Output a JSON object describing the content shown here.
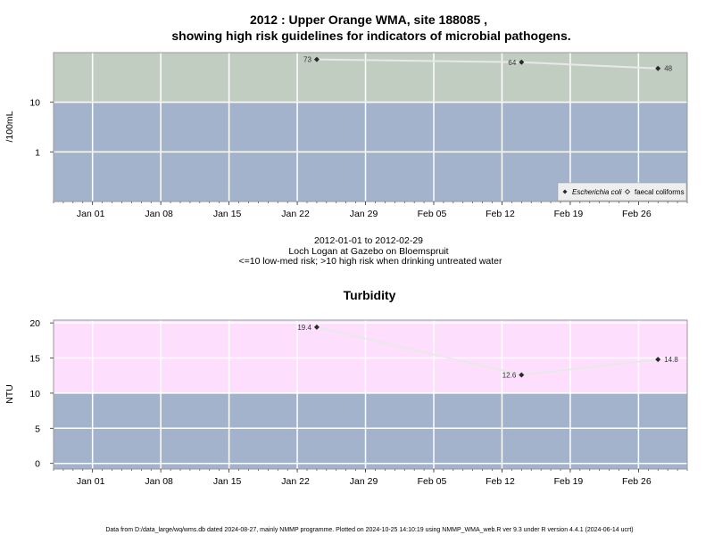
{
  "page": {
    "title_line1": "2012 : Upper Orange WMA, site 188085 ,",
    "title_line2": "showing high risk guidelines for indicators of microbial pathogens.",
    "date_range": "2012-01-01 to 2012-02-29",
    "site_name": "Loch Logan at Gazebo on Bloemspruit",
    "risk_note": "<=10 low-med risk; >10 high risk when drinking untreated water",
    "footer": "Data from D:/data_large/wq/wms.db dated 2024-08-27, mainly NMMP programme. Plotted on 2024-10-25 14:10:19 using NMMP_WMA_web.R ver 9.3 under R version 4.4.1 (2024-06-14 ucrt)"
  },
  "chart_data": [
    {
      "type": "line",
      "title": "2012 : Upper Orange WMA, site 188085 , showing high risk guidelines for indicators of microbial pathogens.",
      "ylabel": "/100mL",
      "xlabel": "",
      "yscale": "log",
      "ylim": [
        0.1,
        100
      ],
      "xlim": [
        "2011-12-28",
        "2012-03-02"
      ],
      "x_ticks": [
        "Jan 01",
        "Jan 08",
        "Jan 15",
        "Jan 22",
        "Jan 29",
        "Feb 05",
        "Feb 12",
        "Feb 19",
        "Feb 26"
      ],
      "x_tick_dates": [
        "2012-01-01",
        "2012-01-08",
        "2012-01-15",
        "2012-01-22",
        "2012-01-29",
        "2012-02-05",
        "2012-02-12",
        "2012-02-19",
        "2012-02-26"
      ],
      "y_ticks": [
        1,
        10
      ],
      "y_tick_labels": [
        "1",
        "10"
      ],
      "threshold": 10,
      "band_colors": {
        "above": "#c2cdc2",
        "below": "#a3b3cb"
      },
      "grid": true,
      "legend_position": "bottom-right",
      "series": [
        {
          "name": "Escherichia coli",
          "marker": "filled-diamond",
          "x": [
            "2012-01-24",
            "2012-02-14",
            "2012-02-28"
          ],
          "y": [
            73,
            64,
            48
          ],
          "labels": [
            "73",
            "64",
            "48"
          ]
        },
        {
          "name": "faecal coliforms",
          "marker": "open-diamond",
          "x": [],
          "y": []
        }
      ]
    },
    {
      "type": "line",
      "title": "Turbidity",
      "ylabel": "NTU",
      "xlabel": "",
      "ylim": [
        -0.8,
        20.4
      ],
      "xlim": [
        "2011-12-28",
        "2012-03-02"
      ],
      "x_ticks": [
        "Jan 01",
        "Jan 08",
        "Jan 15",
        "Jan 22",
        "Jan 29",
        "Feb 05",
        "Feb 12",
        "Feb 19",
        "Feb 26"
      ],
      "x_tick_dates": [
        "2012-01-01",
        "2012-01-08",
        "2012-01-15",
        "2012-01-22",
        "2012-01-29",
        "2012-02-05",
        "2012-02-12",
        "2012-02-19",
        "2012-02-26"
      ],
      "y_ticks": [
        0,
        5,
        10,
        15,
        20
      ],
      "y_tick_labels": [
        "0",
        "5",
        "10",
        "15",
        "20"
      ],
      "threshold": 10,
      "band_colors": {
        "above": "#fddffd",
        "below": "#a3b3cb"
      },
      "grid": true,
      "series": [
        {
          "marker": "filled-diamond",
          "x": [
            "2012-01-24",
            "2012-02-14",
            "2012-02-28"
          ],
          "y": [
            19.4,
            12.6,
            14.8
          ],
          "labels": [
            "19.4",
            "12.6",
            "14.8"
          ]
        }
      ]
    }
  ]
}
